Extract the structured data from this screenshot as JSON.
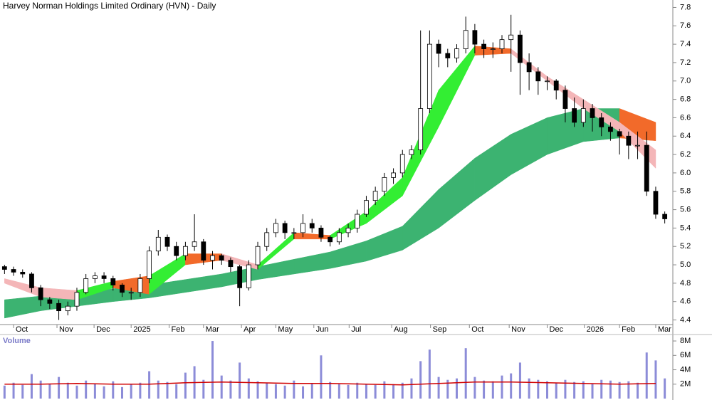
{
  "chart_data": [
    {
      "type": "candlestick",
      "title": "Harvey Norman Holdings Limited Ordinary (HVN) - Daily",
      "xlim": [
        -0.5,
        73.5
      ],
      "xticks": [
        {
          "value": 1,
          "label": "Oct"
        },
        {
          "value": 5.8,
          "label": "Nov"
        },
        {
          "value": 9.9,
          "label": "Dec"
        },
        {
          "value": 14,
          "label": "2025"
        },
        {
          "value": 18.2,
          "label": "Feb"
        },
        {
          "value": 22,
          "label": "Mar"
        },
        {
          "value": 26.2,
          "label": "Apr"
        },
        {
          "value": 30,
          "label": "May"
        },
        {
          "value": 34.2,
          "label": "Jun"
        },
        {
          "value": 38.1,
          "label": "Jul"
        },
        {
          "value": 42.8,
          "label": "Aug"
        },
        {
          "value": 47.1,
          "label": "Sep"
        },
        {
          "value": 51.4,
          "label": "Oct"
        },
        {
          "value": 55.8,
          "label": "Nov"
        },
        {
          "value": 60,
          "label": "Dec"
        },
        {
          "value": 64.1,
          "label": "2026"
        },
        {
          "value": 68,
          "label": "Feb"
        },
        {
          "value": 72,
          "label": "Mar"
        }
      ],
      "ylim": [
        4.35,
        7.85
      ],
      "yticks": [
        4.4,
        4.6,
        4.8,
        {
          "value": 5,
          "label": "5.0"
        },
        5.2,
        5.4,
        5.6,
        5.8,
        {
          "value": 6,
          "label": "6.0"
        },
        6.2,
        6.4,
        6.6,
        6.8,
        {
          "value": 7,
          "label": "7.0"
        },
        7.2,
        7.4,
        7.6,
        7.8
      ],
      "up_color": "#ffffff",
      "down_color": "#000000",
      "open": [
        4.98,
        4.95,
        4.92,
        4.9,
        4.75,
        4.62,
        4.58,
        4.5,
        4.55,
        4.7,
        4.85,
        4.88,
        4.85,
        4.78,
        4.7,
        4.7,
        4.85,
        5.15,
        5.3,
        5.2,
        5.1,
        5.2,
        5.25,
        5.05,
        5.1,
        5.05,
        4.98,
        4.75,
        5.0,
        5.2,
        5.35,
        5.45,
        5.35,
        5.35,
        5.45,
        5.4,
        5.3,
        5.25,
        5.35,
        5.4,
        5.55,
        5.7,
        5.8,
        5.95,
        6.0,
        6.2,
        6.25,
        6.7,
        7.4,
        7.3,
        7.25,
        7.35,
        7.55,
        7.4,
        7.35,
        7.35,
        7.45,
        7.5,
        7.2,
        7.1,
        7.0,
        7.0,
        6.9,
        6.7,
        6.55,
        6.7,
        6.6,
        6.5,
        6.45,
        6.4,
        6.3,
        6.3,
        5.8,
        5.55
      ],
      "high": [
        5.0,
        4.98,
        4.95,
        4.92,
        4.78,
        4.65,
        4.62,
        4.6,
        4.75,
        4.9,
        4.92,
        4.92,
        4.88,
        4.8,
        4.75,
        4.9,
        5.2,
        5.38,
        5.33,
        5.25,
        5.25,
        5.55,
        5.28,
        5.15,
        5.12,
        5.08,
        5.0,
        5.05,
        5.25,
        5.4,
        5.5,
        5.48,
        5.4,
        5.55,
        5.5,
        5.43,
        5.32,
        5.4,
        5.45,
        5.6,
        5.75,
        5.85,
        6.0,
        6.05,
        6.25,
        6.3,
        7.55,
        7.55,
        7.45,
        7.35,
        7.4,
        7.7,
        7.62,
        7.45,
        7.42,
        7.5,
        7.72,
        7.55,
        7.3,
        7.15,
        7.05,
        7.02,
        6.95,
        6.82,
        6.8,
        6.75,
        6.65,
        6.55,
        6.48,
        6.45,
        6.45,
        6.45,
        5.85,
        5.58
      ],
      "low": [
        4.9,
        4.88,
        4.86,
        4.7,
        4.55,
        4.52,
        4.4,
        4.45,
        4.5,
        4.68,
        4.8,
        4.8,
        4.72,
        4.65,
        4.62,
        4.65,
        4.8,
        5.1,
        5.15,
        5.05,
        5.05,
        5.15,
        5.0,
        4.95,
        5.0,
        4.92,
        4.55,
        4.72,
        4.95,
        5.15,
        5.3,
        5.28,
        5.28,
        5.3,
        5.35,
        5.25,
        5.2,
        5.22,
        5.3,
        5.35,
        5.52,
        5.65,
        5.75,
        5.88,
        5.95,
        6.15,
        6.2,
        6.65,
        7.15,
        7.15,
        7.2,
        7.3,
        7.3,
        7.25,
        7.25,
        7.3,
        7.1,
        6.85,
        6.9,
        6.85,
        6.9,
        6.8,
        6.55,
        6.5,
        6.5,
        6.45,
        6.4,
        6.35,
        6.2,
        6.15,
        6.15,
        5.75,
        5.5,
        5.45
      ],
      "close": [
        4.95,
        4.92,
        4.9,
        4.75,
        4.62,
        4.58,
        4.5,
        4.55,
        4.7,
        4.85,
        4.88,
        4.85,
        4.78,
        4.7,
        4.7,
        4.85,
        5.15,
        5.3,
        5.2,
        5.1,
        5.2,
        5.25,
        5.05,
        5.1,
        5.05,
        4.98,
        4.75,
        5.0,
        5.2,
        5.35,
        5.45,
        5.35,
        5.35,
        5.45,
        5.4,
        5.3,
        5.25,
        5.35,
        5.4,
        5.55,
        5.7,
        5.8,
        5.95,
        6.0,
        6.2,
        6.25,
        6.7,
        7.4,
        7.3,
        7.25,
        7.35,
        7.55,
        7.4,
        7.35,
        7.35,
        7.45,
        7.5,
        7.2,
        7.1,
        7.0,
        7.0,
        6.9,
        6.7,
        6.55,
        6.7,
        6.6,
        6.5,
        6.45,
        6.4,
        6.3,
        6.3,
        5.8,
        5.55,
        5.5
      ],
      "bands": [
        {
          "x": [
            0,
            4,
            8,
            12,
            16,
            20,
            24,
            28,
            32,
            36,
            40,
            44,
            48,
            52,
            56,
            60,
            64,
            68,
            72
          ],
          "upper": [
            4.62,
            4.66,
            4.7,
            4.74,
            4.78,
            4.84,
            4.9,
            4.98,
            5.06,
            5.14,
            5.26,
            5.42,
            5.82,
            6.16,
            6.42,
            6.6,
            6.7,
            6.7,
            6.55
          ],
          "lower": [
            4.42,
            4.5,
            4.55,
            4.6,
            4.64,
            4.7,
            4.76,
            4.84,
            4.9,
            4.96,
            5.04,
            5.16,
            5.4,
            5.7,
            5.98,
            6.2,
            6.34,
            6.38,
            6.35
          ],
          "up_color": "#3cb371",
          "down_color": "#f26a2a",
          "flat_color": "#3cb371"
        },
        {
          "x": [
            0,
            4,
            8,
            12,
            16,
            20,
            24,
            28,
            32,
            36,
            40,
            44,
            48,
            52,
            56,
            60,
            64,
            68,
            72
          ],
          "upper": [
            4.85,
            4.75,
            4.72,
            4.82,
            4.88,
            5.12,
            5.12,
            5.0,
            5.35,
            5.32,
            5.58,
            5.95,
            6.9,
            7.38,
            7.35,
            7.05,
            6.8,
            6.55,
            6.25
          ],
          "lower": [
            4.8,
            4.65,
            4.62,
            4.75,
            4.68,
            5.0,
            5.05,
            4.95,
            5.28,
            5.28,
            5.45,
            5.75,
            6.5,
            7.28,
            7.3,
            7.0,
            6.7,
            6.45,
            6.05
          ],
          "up_color": "#33ee33",
          "down_color": "#f4b6b8",
          "flat_color": "#f26a2a"
        }
      ]
    },
    {
      "type": "volume",
      "title": "Volume",
      "xlim": [
        -0.5,
        73.5
      ],
      "ylim": [
        0,
        8.5
      ],
      "yticks": [
        {
          "value": 2,
          "label": "2M"
        },
        {
          "value": 4,
          "label": "4M"
        },
        {
          "value": 6,
          "label": "6M"
        },
        {
          "value": 8,
          "label": "8M"
        }
      ],
      "color": "#8c8cd8",
      "values": [
        1.8,
        2.2,
        1.9,
        3.4,
        2.5,
        2.0,
        3.0,
        2.2,
        1.8,
        2.5,
        2.0,
        1.7,
        2.4,
        1.6,
        2.0,
        2.2,
        3.8,
        2.5,
        2.3,
        2.0,
        3.6,
        4.5,
        2.6,
        8.0,
        3.2,
        2.5,
        5.0,
        2.8,
        2.4,
        2.2,
        2.0,
        1.8,
        2.5,
        1.7,
        2.1,
        6.0,
        2.3,
        2.0,
        1.9,
        2.2,
        2.0,
        1.9,
        2.4,
        2.0,
        2.2,
        2.8,
        5.2,
        6.8,
        3.0,
        2.6,
        2.8,
        7.0,
        3.0,
        2.5,
        2.4,
        3.2,
        3.5,
        5.0,
        2.8,
        2.6,
        2.4,
        2.2,
        2.6,
        2.3,
        2.4,
        2.1,
        2.6,
        2.5,
        2.3,
        2.4,
        2.2,
        6.4,
        5.3,
        2.8
      ],
      "ma": {
        "color": "#d00000",
        "x": [
          0,
          4,
          8,
          12,
          16,
          20,
          24,
          28,
          32,
          36,
          40,
          44,
          48,
          52,
          56,
          60,
          64,
          68,
          72
        ],
        "values": [
          2.0,
          2.0,
          2.1,
          2.0,
          2.0,
          2.2,
          2.3,
          2.2,
          2.1,
          2.1,
          2.0,
          1.9,
          2.1,
          2.3,
          2.3,
          2.2,
          2.1,
          2.0,
          2.1
        ]
      }
    }
  ]
}
